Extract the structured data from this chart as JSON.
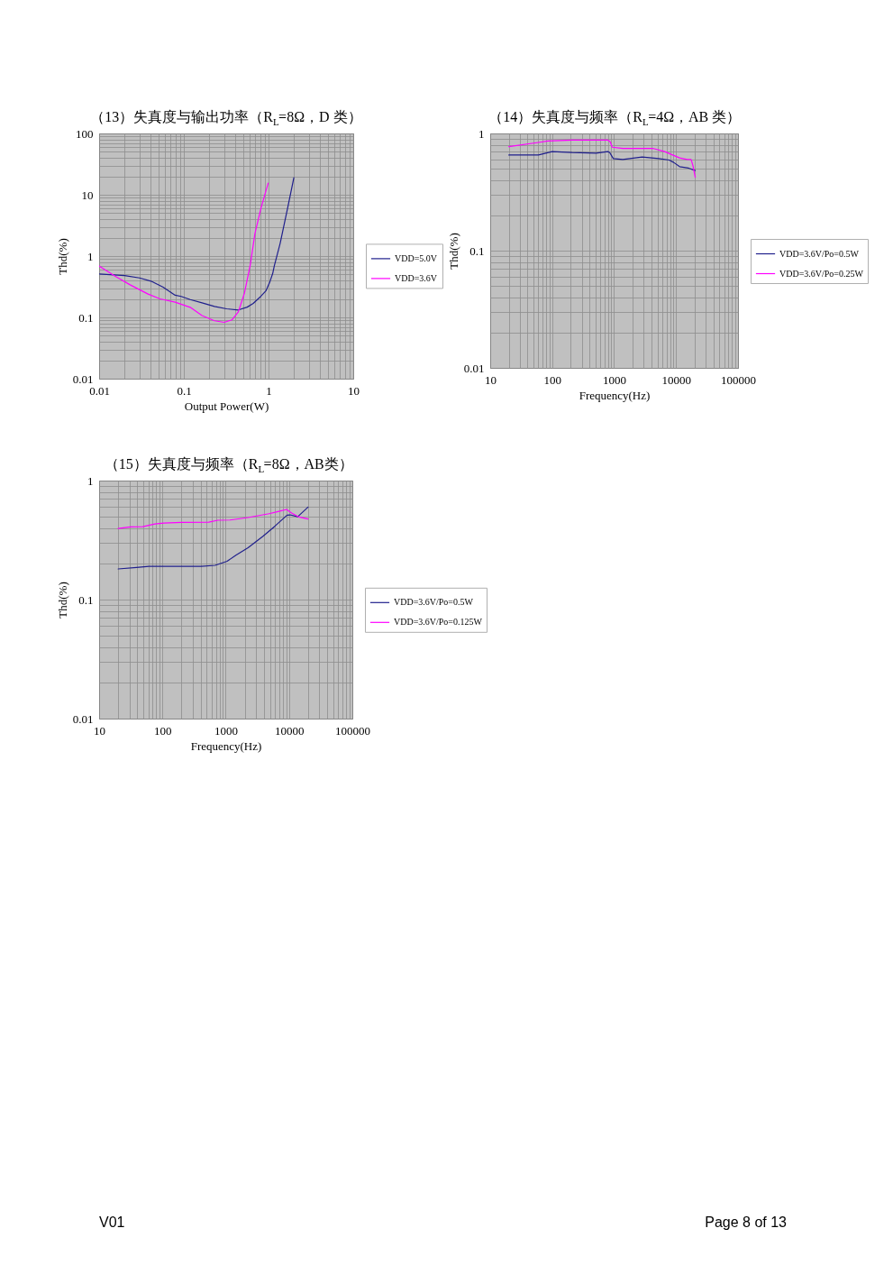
{
  "chart_data": [
    {
      "type": "line",
      "title": "（13）失真度与输出功率（R$_{L}$=8Ω，D 类）",
      "xlabel": "Output Power(W)",
      "ylabel": "Thd(%)",
      "log": "xy",
      "grid": true,
      "legend": "right",
      "xlim": [
        0.01,
        10
      ],
      "ylim": [
        0.01,
        100
      ],
      "xticks": [
        0.01,
        {
          "value": 0.02,
          "label": null
        },
        {
          "value": 0.03,
          "label": null
        },
        {
          "value": 0.04,
          "label": null
        },
        {
          "value": 0.05,
          "label": null
        },
        {
          "value": 0.06,
          "label": null
        },
        {
          "value": 0.07,
          "label": null
        },
        {
          "value": 0.08,
          "label": null
        },
        {
          "value": 0.09,
          "label": null
        },
        0.1,
        {
          "value": 0.2,
          "label": null
        },
        {
          "value": 0.3,
          "label": null
        },
        {
          "value": 0.4,
          "label": null
        },
        {
          "value": 0.5,
          "label": null
        },
        {
          "value": 0.6,
          "label": null
        },
        {
          "value": 0.7,
          "label": null
        },
        {
          "value": 0.8,
          "label": null
        },
        {
          "value": 0.9,
          "label": null
        },
        1,
        {
          "value": 2,
          "label": null
        },
        {
          "value": 3,
          "label": null
        },
        {
          "value": 4,
          "label": null
        },
        {
          "value": 5,
          "label": null
        },
        {
          "value": 6,
          "label": null
        },
        {
          "value": 7,
          "label": null
        },
        {
          "value": 8,
          "label": null
        },
        {
          "value": 9,
          "label": null
        },
        10
      ],
      "yticks": [
        0.01,
        {
          "value": 0.02,
          "label": null
        },
        {
          "value": 0.03,
          "label": null
        },
        {
          "value": 0.04,
          "label": null
        },
        {
          "value": 0.05,
          "label": null
        },
        {
          "value": 0.06,
          "label": null
        },
        {
          "value": 0.07,
          "label": null
        },
        {
          "value": 0.08,
          "label": null
        },
        {
          "value": 0.09,
          "label": null
        },
        0.1,
        {
          "value": 0.2,
          "label": null
        },
        {
          "value": 0.3,
          "label": null
        },
        {
          "value": 0.4,
          "label": null
        },
        {
          "value": 0.5,
          "label": null
        },
        {
          "value": 0.6,
          "label": null
        },
        {
          "value": 0.7,
          "label": null
        },
        {
          "value": 0.8,
          "label": null
        },
        {
          "value": 0.9,
          "label": null
        },
        1,
        {
          "value": 2,
          "label": null
        },
        {
          "value": 3,
          "label": null
        },
        {
          "value": 4,
          "label": null
        },
        {
          "value": 5,
          "label": null
        },
        {
          "value": 6,
          "label": null
        },
        {
          "value": 7,
          "label": null
        },
        {
          "value": 8,
          "label": null
        },
        {
          "value": 9,
          "label": null
        },
        10,
        {
          "value": 20,
          "label": null
        },
        {
          "value": 30,
          "label": null
        },
        {
          "value": 40,
          "label": null
        },
        {
          "value": 50,
          "label": null
        },
        {
          "value": 60,
          "label": null
        },
        {
          "value": 70,
          "label": null
        },
        {
          "value": 80,
          "label": null
        },
        {
          "value": 90,
          "label": null
        },
        100
      ],
      "series": [
        {
          "name": "VDD=5.0V",
          "color": "#1f1f8c",
          "x": [
            0.01,
            0.02,
            0.03,
            0.041,
            0.057,
            0.079,
            0.093,
            0.119,
            0.164,
            0.23,
            0.32,
            0.44,
            0.56,
            0.66,
            0.81,
            0.93,
            1.03,
            1.12,
            1.17,
            1.37,
            1.69,
            1.99
          ],
          "values": [
            0.51,
            0.48,
            0.44,
            0.39,
            0.31,
            0.23,
            0.22,
            0.195,
            0.173,
            0.151,
            0.138,
            0.132,
            0.147,
            0.169,
            0.22,
            0.27,
            0.37,
            0.52,
            0.69,
            1.6,
            6.3,
            19
          ]
        },
        {
          "name": "VDD=3.6V",
          "color": "#ff00ff",
          "x": [
            0.01,
            0.0154,
            0.0232,
            0.0378,
            0.0525,
            0.079,
            0.119,
            0.164,
            0.23,
            0.3,
            0.37,
            0.44,
            0.52,
            0.61,
            0.69,
            0.81,
            0.99
          ],
          "values": [
            0.69,
            0.47,
            0.34,
            0.24,
            0.2,
            0.177,
            0.146,
            0.107,
            0.088,
            0.083,
            0.091,
            0.123,
            0.25,
            0.73,
            2.3,
            5.9,
            15.5
          ]
        }
      ]
    },
    {
      "type": "line",
      "title": "（14）失真度与频率（R$_{L}$=4Ω，AB 类）",
      "xlabel": "Frequency(Hz)",
      "ylabel": "Thd(%)",
      "log": "xy",
      "grid": true,
      "legend": "right",
      "xlim": [
        10,
        100000
      ],
      "ylim": [
        0.01,
        1
      ],
      "xticks": [
        10,
        {
          "value": 20,
          "label": null
        },
        {
          "value": 30,
          "label": null
        },
        {
          "value": 40,
          "label": null
        },
        {
          "value": 50,
          "label": null
        },
        {
          "value": 60,
          "label": null
        },
        {
          "value": 70,
          "label": null
        },
        {
          "value": 80,
          "label": null
        },
        {
          "value": 90,
          "label": null
        },
        100,
        {
          "value": 200,
          "label": null
        },
        {
          "value": 300,
          "label": null
        },
        {
          "value": 400,
          "label": null
        },
        {
          "value": 500,
          "label": null
        },
        {
          "value": 600,
          "label": null
        },
        {
          "value": 700,
          "label": null
        },
        {
          "value": 800,
          "label": null
        },
        {
          "value": 900,
          "label": null
        },
        1000,
        {
          "value": 2000,
          "label": null
        },
        {
          "value": 3000,
          "label": null
        },
        {
          "value": 4000,
          "label": null
        },
        {
          "value": 5000,
          "label": null
        },
        {
          "value": 6000,
          "label": null
        },
        {
          "value": 7000,
          "label": null
        },
        {
          "value": 8000,
          "label": null
        },
        {
          "value": 9000,
          "label": null
        },
        10000,
        {
          "value": 20000,
          "label": null
        },
        {
          "value": 30000,
          "label": null
        },
        {
          "value": 40000,
          "label": null
        },
        {
          "value": 50000,
          "label": null
        },
        {
          "value": 60000,
          "label": null
        },
        {
          "value": 70000,
          "label": null
        },
        {
          "value": 80000,
          "label": null
        },
        {
          "value": 90000,
          "label": null
        },
        100000
      ],
      "yticks": [
        0.01,
        {
          "value": 0.02,
          "label": null
        },
        {
          "value": 0.03,
          "label": null
        },
        {
          "value": 0.04,
          "label": null
        },
        {
          "value": 0.05,
          "label": null
        },
        {
          "value": 0.06,
          "label": null
        },
        {
          "value": 0.07,
          "label": null
        },
        {
          "value": 0.08,
          "label": null
        },
        {
          "value": 0.09,
          "label": null
        },
        0.1,
        {
          "value": 0.2,
          "label": null
        },
        {
          "value": 0.3,
          "label": null
        },
        {
          "value": 0.4,
          "label": null
        },
        {
          "value": 0.5,
          "label": null
        },
        {
          "value": 0.6,
          "label": null
        },
        {
          "value": 0.7,
          "label": null
        },
        {
          "value": 0.8,
          "label": null
        },
        {
          "value": 0.9,
          "label": null
        },
        1
      ],
      "series": [
        {
          "name": "VDD=3.6V/Po=0.5W",
          "color": "#1f1f8c",
          "x": [
            20,
            60,
            100,
            210,
            510,
            790,
            850,
            970,
            1380,
            2840,
            5250,
            7740,
            9150,
            11400,
            15900,
            20400
          ],
          "values": [
            0.655,
            0.655,
            0.7,
            0.687,
            0.679,
            0.7,
            0.687,
            0.61,
            0.6,
            0.629,
            0.61,
            0.593,
            0.566,
            0.521,
            0.506,
            0.483
          ]
        },
        {
          "name": "VDD=3.6V/Po=0.25W",
          "color": "#ff00ff",
          "x": [
            20,
            60,
            85,
            210,
            790,
            865,
            935,
            1380,
            4200,
            6550,
            11400,
            15100,
            17500,
            18800,
            20400
          ],
          "values": [
            0.772,
            0.838,
            0.863,
            0.879,
            0.879,
            0.848,
            0.763,
            0.746,
            0.746,
            0.7,
            0.618,
            0.6,
            0.6,
            0.527,
            0.422
          ]
        }
      ]
    },
    {
      "type": "line",
      "title": "（15）失真度与频率（R$_{L}$=8Ω，AB类）",
      "xlabel": "Frequency(Hz)",
      "ylabel": "Thd(%)",
      "log": "xy",
      "grid": true,
      "legend": "right",
      "xlim": [
        10,
        100000
      ],
      "ylim": [
        0.01,
        1
      ],
      "xticks": [
        10,
        {
          "value": 20,
          "label": null
        },
        {
          "value": 30,
          "label": null
        },
        {
          "value": 40,
          "label": null
        },
        {
          "value": 50,
          "label": null
        },
        {
          "value": 60,
          "label": null
        },
        {
          "value": 70,
          "label": null
        },
        {
          "value": 80,
          "label": null
        },
        {
          "value": 90,
          "label": null
        },
        100,
        {
          "value": 200,
          "label": null
        },
        {
          "value": 300,
          "label": null
        },
        {
          "value": 400,
          "label": null
        },
        {
          "value": 500,
          "label": null
        },
        {
          "value": 600,
          "label": null
        },
        {
          "value": 700,
          "label": null
        },
        {
          "value": 800,
          "label": null
        },
        {
          "value": 900,
          "label": null
        },
        1000,
        {
          "value": 2000,
          "label": null
        },
        {
          "value": 3000,
          "label": null
        },
        {
          "value": 4000,
          "label": null
        },
        {
          "value": 5000,
          "label": null
        },
        {
          "value": 6000,
          "label": null
        },
        {
          "value": 7000,
          "label": null
        },
        {
          "value": 8000,
          "label": null
        },
        {
          "value": 9000,
          "label": null
        },
        10000,
        {
          "value": 20000,
          "label": null
        },
        {
          "value": 30000,
          "label": null
        },
        {
          "value": 40000,
          "label": null
        },
        {
          "value": 50000,
          "label": null
        },
        {
          "value": 60000,
          "label": null
        },
        {
          "value": 70000,
          "label": null
        },
        {
          "value": 80000,
          "label": null
        },
        {
          "value": 90000,
          "label": null
        },
        100000
      ],
      "yticks": [
        0.01,
        {
          "value": 0.02,
          "label": null
        },
        {
          "value": 0.03,
          "label": null
        },
        {
          "value": 0.04,
          "label": null
        },
        {
          "value": 0.05,
          "label": null
        },
        {
          "value": 0.06,
          "label": null
        },
        {
          "value": 0.07,
          "label": null
        },
        {
          "value": 0.08,
          "label": null
        },
        {
          "value": 0.09,
          "label": null
        },
        0.1,
        {
          "value": 0.2,
          "label": null
        },
        {
          "value": 0.3,
          "label": null
        },
        {
          "value": 0.4,
          "label": null
        },
        {
          "value": 0.5,
          "label": null
        },
        {
          "value": 0.6,
          "label": null
        },
        {
          "value": 0.7,
          "label": null
        },
        {
          "value": 0.8,
          "label": null
        },
        {
          "value": 0.9,
          "label": null
        },
        1
      ],
      "series": [
        {
          "name": "VDD=3.6V/Po=0.5W",
          "color": "#1f1f8c",
          "x": [
            20,
            39,
            61,
            410,
            680,
            1050,
            1450,
            2250,
            3880,
            6010,
            9310,
            10400,
            13700,
            20000
          ],
          "values": [
            0.181,
            0.186,
            0.19,
            0.19,
            0.194,
            0.21,
            0.236,
            0.273,
            0.341,
            0.415,
            0.512,
            0.515,
            0.497,
            0.599
          ]
        },
        {
          "name": "VDD=3.6V/Po=0.125W",
          "color": "#ff00ff",
          "x": [
            20,
            31.5,
            49,
            76,
            105,
            200,
            540,
            750,
            1170,
            2250,
            4830,
            6710,
            9120,
            11000,
            14400,
            20000
          ],
          "values": [
            0.396,
            0.408,
            0.41,
            0.432,
            0.44,
            0.445,
            0.447,
            0.464,
            0.466,
            0.489,
            0.527,
            0.549,
            0.572,
            0.533,
            0.494,
            0.475
          ]
        }
      ],
      "annotations": [
        "V01",
        "Page 8 of 13"
      ]
    }
  ]
}
